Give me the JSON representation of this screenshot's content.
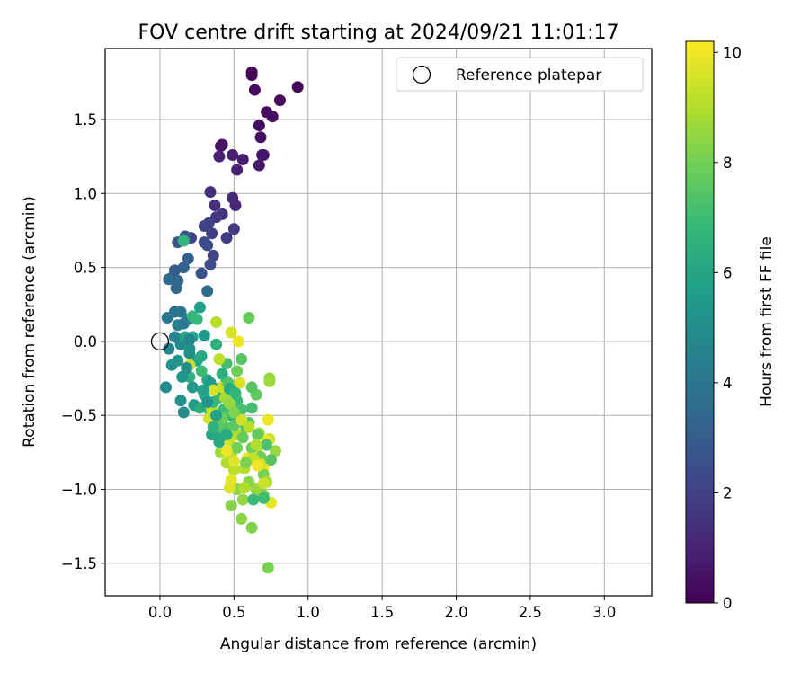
{
  "chart_data": {
    "type": "scatter",
    "title": "FOV centre drift starting at 2024/09/21 11:01:17",
    "xlabel": "Angular distance from reference (arcmin)",
    "ylabel": "Rotation from reference (arcmin)",
    "xlim": [
      -0.37,
      3.32
    ],
    "ylim": [
      -1.72,
      1.98
    ],
    "xticks": [
      0.0,
      0.5,
      1.0,
      1.5,
      2.0,
      2.5,
      3.0
    ],
    "yticks": [
      -1.5,
      -1.0,
      -0.5,
      0.0,
      0.5,
      1.0,
      1.5
    ],
    "xtick_labels": [
      "0.0",
      "0.5",
      "1.0",
      "1.5",
      "2.0",
      "2.5",
      "3.0"
    ],
    "ytick_labels": [
      "−1.5",
      "−1.0",
      "−0.5",
      "0.0",
      "0.5",
      "1.0",
      "1.5"
    ],
    "grid": true,
    "legend": {
      "position": "top-right",
      "entries": [
        "Reference platepar"
      ]
    },
    "reference_point": {
      "x": 0.0,
      "y": 0.0
    },
    "colorbar": {
      "label": "Hours from first FF file",
      "range": [
        0,
        10.2
      ],
      "ticks": [
        0,
        2,
        4,
        6,
        8,
        10
      ],
      "tick_labels": [
        "0",
        "2",
        "4",
        "6",
        "8",
        "10"
      ],
      "colormap": "viridis",
      "stops": [
        "#440154",
        "#482878",
        "#3e4989",
        "#31688e",
        "#26828e",
        "#1f9e89",
        "#35b779",
        "#6ece58",
        "#b5de2b",
        "#fde725"
      ]
    },
    "points": [
      [
        0.62,
        1.82,
        0.05
      ],
      [
        0.62,
        1.8,
        0.1
      ],
      [
        0.93,
        1.72,
        0.15
      ],
      [
        0.81,
        1.63,
        0.2
      ],
      [
        0.64,
        1.7,
        0.25
      ],
      [
        0.72,
        1.55,
        0.3
      ],
      [
        0.76,
        1.52,
        0.35
      ],
      [
        0.67,
        1.46,
        0.4
      ],
      [
        0.68,
        1.38,
        0.45
      ],
      [
        0.42,
        1.33,
        0.5
      ],
      [
        0.41,
        1.32,
        0.55
      ],
      [
        0.69,
        1.26,
        0.6
      ],
      [
        0.7,
        1.26,
        0.65
      ],
      [
        0.67,
        1.19,
        0.7
      ],
      [
        0.56,
        1.23,
        0.8
      ],
      [
        0.49,
        1.26,
        0.9
      ],
      [
        0.52,
        1.16,
        0.95
      ],
      [
        0.4,
        1.25,
        1.0
      ],
      [
        0.51,
        0.92,
        1.1
      ],
      [
        0.49,
        0.97,
        1.2
      ],
      [
        0.34,
        1.01,
        1.3
      ],
      [
        0.37,
        0.92,
        1.4
      ],
      [
        0.42,
        0.86,
        1.5
      ],
      [
        0.38,
        0.84,
        1.6
      ],
      [
        0.5,
        0.76,
        1.7
      ],
      [
        0.45,
        0.7,
        1.8
      ],
      [
        0.35,
        0.73,
        1.9
      ],
      [
        0.3,
        0.78,
        2.0
      ],
      [
        0.33,
        0.8,
        2.05
      ],
      [
        0.21,
        0.7,
        2.1
      ],
      [
        0.36,
        0.58,
        2.2
      ],
      [
        0.32,
        0.65,
        2.3
      ],
      [
        0.3,
        0.67,
        2.4
      ],
      [
        0.34,
        0.52,
        2.5
      ],
      [
        0.28,
        0.46,
        2.6
      ],
      [
        0.17,
        0.71,
        2.7
      ],
      [
        0.12,
        0.67,
        2.8
      ],
      [
        0.1,
        0.48,
        2.9
      ],
      [
        0.08,
        0.43,
        3.0
      ],
      [
        0.19,
        0.56,
        3.1
      ],
      [
        0.16,
        0.5,
        3.2
      ],
      [
        0.12,
        0.41,
        3.3
      ],
      [
        0.11,
        0.36,
        3.4
      ],
      [
        0.06,
        0.42,
        3.5
      ],
      [
        0.32,
        0.34,
        3.6
      ],
      [
        0.1,
        0.2,
        3.8
      ],
      [
        0.05,
        0.16,
        4.0
      ],
      [
        0.14,
        0.2,
        4.1
      ],
      [
        0.19,
        0.15,
        4.3
      ],
      [
        0.1,
        0.03,
        4.5
      ],
      [
        0.06,
        -0.05,
        4.6
      ],
      [
        0.14,
        -0.02,
        4.8
      ],
      [
        0.04,
        -0.31,
        4.9
      ],
      [
        0.16,
        -0.48,
        5.0
      ],
      [
        0.14,
        -0.4,
        5.1
      ],
      [
        0.08,
        -0.16,
        5.2
      ],
      [
        0.12,
        -0.13,
        5.3
      ],
      [
        0.2,
        -0.05,
        5.4
      ],
      [
        0.23,
        -0.43,
        5.5
      ],
      [
        0.3,
        0.04,
        5.6
      ],
      [
        0.27,
        0.23,
        5.7
      ],
      [
        0.17,
        0.03,
        5.8
      ],
      [
        0.22,
        0.03,
        5.9
      ],
      [
        0.25,
        -0.13,
        6.0
      ],
      [
        0.28,
        -0.1,
        6.1
      ],
      [
        0.32,
        -0.26,
        6.2
      ],
      [
        0.36,
        -0.55,
        6.3
      ],
      [
        0.34,
        -0.48,
        6.4
      ],
      [
        0.38,
        -0.02,
        6.5
      ],
      [
        0.16,
        0.68,
        6.6
      ],
      [
        0.22,
        0.17,
        6.7
      ],
      [
        0.25,
        0.15,
        6.8
      ],
      [
        0.4,
        -0.38,
        6.9
      ],
      [
        0.42,
        -0.6,
        7.0
      ],
      [
        0.45,
        -0.15,
        7.1
      ],
      [
        0.48,
        -0.42,
        7.2
      ],
      [
        0.5,
        -0.32,
        7.3
      ],
      [
        0.44,
        -0.58,
        7.4
      ],
      [
        0.55,
        -0.12,
        7.5
      ],
      [
        0.6,
        -0.55,
        7.6
      ],
      [
        0.65,
        -0.36,
        7.7
      ],
      [
        0.6,
        0.16,
        7.8
      ],
      [
        0.52,
        -0.2,
        7.9
      ],
      [
        0.7,
        -1.04,
        8.0
      ],
      [
        0.73,
        -1.53,
        8.1
      ],
      [
        0.62,
        -1.26,
        8.2
      ],
      [
        0.48,
        -1.11,
        8.3
      ],
      [
        0.55,
        -1.2,
        8.4
      ],
      [
        0.74,
        -0.25,
        8.5
      ],
      [
        0.78,
        -0.74,
        8.6
      ],
      [
        0.41,
        -0.75,
        8.7
      ],
      [
        0.44,
        -0.38,
        8.8
      ],
      [
        0.52,
        -0.63,
        8.9
      ],
      [
        0.48,
        -0.76,
        9.0
      ],
      [
        0.57,
        -0.86,
        9.1
      ],
      [
        0.35,
        -0.46,
        9.2
      ],
      [
        0.66,
        -0.71,
        9.3
      ],
      [
        0.74,
        -0.66,
        9.4
      ],
      [
        0.33,
        -0.52,
        9.5
      ],
      [
        0.48,
        0.06,
        9.6
      ],
      [
        0.54,
        -0.28,
        9.7
      ],
      [
        0.59,
        -0.79,
        9.8
      ],
      [
        0.75,
        -1.09,
        9.9
      ],
      [
        0.53,
        0.0,
        10.0
      ],
      [
        0.7,
        -0.85,
        10.1
      ],
      [
        0.34,
        -0.28,
        5.6
      ],
      [
        0.38,
        -0.32,
        5.9
      ],
      [
        0.3,
        -0.36,
        6.1
      ],
      [
        0.42,
        -0.22,
        6.4
      ],
      [
        0.45,
        -0.27,
        6.6
      ],
      [
        0.27,
        -0.45,
        6.3
      ],
      [
        0.35,
        -0.63,
        6.0
      ],
      [
        0.4,
        -0.68,
        6.2
      ],
      [
        0.48,
        -0.5,
        6.7
      ],
      [
        0.52,
        -0.4,
        6.9
      ],
      [
        0.55,
        -0.46,
        7.2
      ],
      [
        0.58,
        -0.58,
        7.3
      ],
      [
        0.62,
        -0.31,
        7.5
      ],
      [
        0.36,
        -0.41,
        6.8
      ],
      [
        0.43,
        -0.46,
        7.0
      ],
      [
        0.5,
        -0.57,
        7.6
      ],
      [
        0.56,
        -0.65,
        7.8
      ],
      [
        0.62,
        -0.72,
        7.9
      ],
      [
        0.68,
        -0.78,
        8.0
      ],
      [
        0.7,
        -0.9,
        8.1
      ],
      [
        0.6,
        -0.95,
        8.3
      ],
      [
        0.52,
        -1.0,
        8.4
      ],
      [
        0.56,
        -1.07,
        8.5
      ],
      [
        0.65,
        -1.0,
        8.6
      ],
      [
        0.72,
        -0.95,
        8.8
      ],
      [
        0.67,
        -0.62,
        8.9
      ],
      [
        0.45,
        -0.82,
        9.0
      ],
      [
        0.5,
        -0.87,
        9.2
      ],
      [
        0.47,
        -0.67,
        9.4
      ],
      [
        0.55,
        -0.53,
        9.5
      ],
      [
        0.44,
        -0.65,
        9.6
      ],
      [
        0.47,
        -0.99,
        9.7
      ],
      [
        0.48,
        -0.94,
        9.8
      ],
      [
        0.73,
        -0.53,
        9.9
      ],
      [
        0.72,
        -0.67,
        10.0
      ],
      [
        0.6,
        -0.58,
        9.1
      ],
      [
        0.63,
        -0.79,
        9.3
      ],
      [
        0.68,
        -0.83,
        9.5
      ],
      [
        0.57,
        -0.99,
        9.0
      ],
      [
        0.74,
        -0.27,
        8.7
      ],
      [
        0.38,
        0.13,
        9.1
      ],
      [
        0.4,
        -0.12,
        9.2
      ],
      [
        0.42,
        -0.31,
        9.3
      ],
      [
        0.2,
        -0.16,
        9.4
      ],
      [
        0.36,
        -0.33,
        9.6
      ],
      [
        0.47,
        -0.42,
        8.5
      ],
      [
        0.5,
        -0.48,
        8.2
      ],
      [
        0.42,
        -0.52,
        7.9
      ],
      [
        0.38,
        -0.57,
        7.6
      ],
      [
        0.46,
        -0.28,
        7.4
      ],
      [
        0.28,
        -0.2,
        7.0
      ],
      [
        0.2,
        -0.24,
        6.5
      ],
      [
        0.32,
        -0.41,
        5.3
      ],
      [
        0.22,
        -0.31,
        5.5
      ],
      [
        0.29,
        -0.33,
        5.7
      ],
      [
        0.15,
        -0.24,
        5.4
      ],
      [
        0.18,
        -0.18,
        5.0
      ],
      [
        0.2,
        0.01,
        4.7
      ],
      [
        0.12,
        0.11,
        4.4
      ],
      [
        0.16,
        0.12,
        4.2
      ],
      [
        0.2,
        -0.08,
        5.1
      ],
      [
        0.38,
        -0.5,
        5.8
      ],
      [
        0.4,
        -0.66,
        6.1
      ],
      [
        0.45,
        -0.63,
        6.3
      ],
      [
        0.36,
        -0.58,
        6.5
      ],
      [
        0.47,
        -0.32,
        6.2
      ],
      [
        0.51,
        -0.35,
        6.7
      ],
      [
        0.62,
        -0.45,
        7.1
      ],
      [
        0.66,
        -0.63,
        7.7
      ],
      [
        0.72,
        -0.7,
        7.3
      ],
      [
        0.75,
        -0.8,
        7.5
      ],
      [
        0.7,
        -1.06,
        7.0
      ],
      [
        0.63,
        -1.07,
        6.9
      ],
      [
        0.58,
        -0.82,
        8.2
      ],
      [
        0.52,
        -0.72,
        8.0
      ],
      [
        0.65,
        -0.7,
        9.0
      ],
      [
        0.7,
        -0.96,
        9.4
      ],
      [
        0.66,
        -0.84,
        10.0
      ],
      [
        0.5,
        -0.81,
        9.7
      ],
      [
        0.45,
        -0.74,
        9.9
      ]
    ]
  }
}
